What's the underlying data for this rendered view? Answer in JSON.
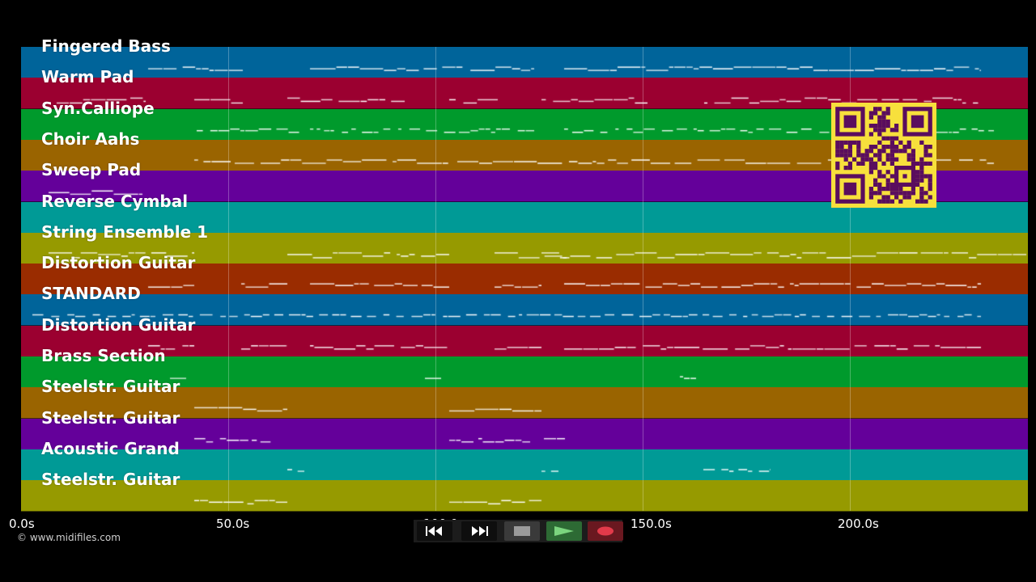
{
  "tracks": [
    {
      "name": "Fingered Bass",
      "color": "#00649a"
    },
    {
      "name": "Warm Pad",
      "color": "#9b0030"
    },
    {
      "name": "Syn.Calliope",
      "color": "#009a2c"
    },
    {
      "name": "Choir Aahs",
      "color": "#9a6400"
    },
    {
      "name": "Sweep Pad",
      "color": "#64009a"
    },
    {
      "name": "Reverse Cymbal",
      "color": "#009a96"
    },
    {
      "name": "String Ensemble 1",
      "color": "#969a00"
    },
    {
      "name": "Distortion Guitar",
      "color": "#9a2c00"
    },
    {
      "name": "STANDARD",
      "color": "#00649a"
    },
    {
      "name": "Distortion Guitar",
      "color": "#9b0030"
    },
    {
      "name": "Brass Section",
      "color": "#009a2c"
    },
    {
      "name": "Steelstr. Guitar",
      "color": "#9a6400"
    },
    {
      "name": "Steelstr. Guitar",
      "color": "#64009a"
    },
    {
      "name": "Acoustic Grand",
      "color": "#009a96"
    },
    {
      "name": "Steelstr. Guitar",
      "color": "#969a00"
    }
  ],
  "timeline": {
    "ticks": [
      "0.0s",
      "50.0s",
      "100.0s",
      "150.0s",
      "200.0s"
    ]
  },
  "copyright": "© www.midifiles.com",
  "controls": {
    "rewind_icon": "rewind-icon",
    "forward_icon": "fast-forward-icon",
    "stop_icon": "stop-icon",
    "play_icon": "play-icon",
    "record_icon": "record-icon"
  },
  "qr": {
    "color": "#f7e03c",
    "ink": "#5a0d5e"
  },
  "colors": {
    "background": "#000000",
    "notes": "#ffffff"
  }
}
